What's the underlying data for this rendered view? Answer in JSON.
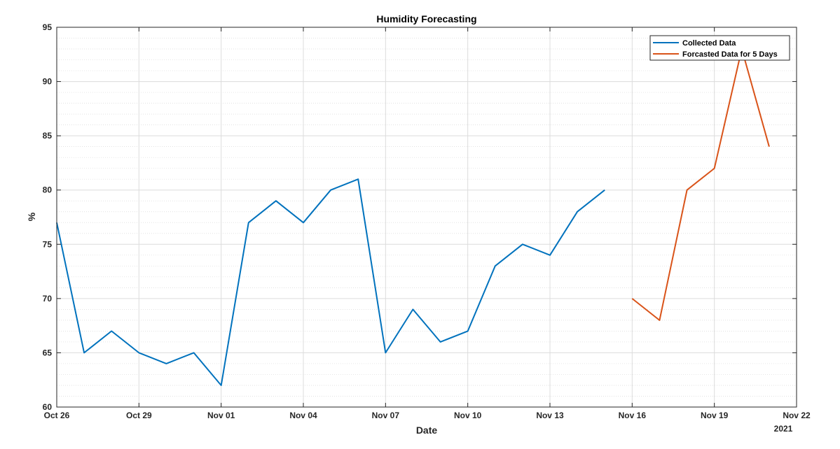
{
  "chart_data": {
    "type": "line",
    "title": "Humidity Forecasting",
    "xlabel": "Date",
    "ylabel": "%",
    "x_secondary_label": "2021",
    "x_tick_labels": [
      "Oct 26",
      "Oct 29",
      "Nov 01",
      "Nov 04",
      "Nov 07",
      "Nov 10",
      "Nov 13",
      "Nov 16",
      "Nov 19",
      "Nov 22"
    ],
    "y_tick_labels": [
      "60",
      "65",
      "70",
      "75",
      "80",
      "85",
      "90",
      "95"
    ],
    "xlim": [
      "2021-10-26",
      "2021-11-22"
    ],
    "ylim": [
      60,
      95
    ],
    "grid": true,
    "minor_grid": true,
    "legend_position": "top-right",
    "series": [
      {
        "name": "Collected Data",
        "color": "#0072bd",
        "x": [
          "2021-10-26",
          "2021-10-27",
          "2021-10-28",
          "2021-10-29",
          "2021-10-30",
          "2021-10-31",
          "2021-11-01",
          "2021-11-02",
          "2021-11-03",
          "2021-11-04",
          "2021-11-05",
          "2021-11-06",
          "2021-11-07",
          "2021-11-08",
          "2021-11-09",
          "2021-11-10",
          "2021-11-11",
          "2021-11-12",
          "2021-11-13",
          "2021-11-14",
          "2021-11-15"
        ],
        "values": [
          77,
          65,
          67,
          65,
          64,
          65,
          62,
          77,
          79,
          77,
          80,
          81,
          65,
          69,
          66,
          67,
          73,
          75,
          74,
          78,
          80
        ]
      },
      {
        "name": "Forcasted Data for 5 Days",
        "color": "#d95319",
        "x": [
          "2021-11-16",
          "2021-11-17",
          "2021-11-18",
          "2021-11-19",
          "2021-11-20",
          "2021-11-21"
        ],
        "values": [
          70,
          68,
          80,
          82,
          93,
          84
        ]
      }
    ]
  }
}
